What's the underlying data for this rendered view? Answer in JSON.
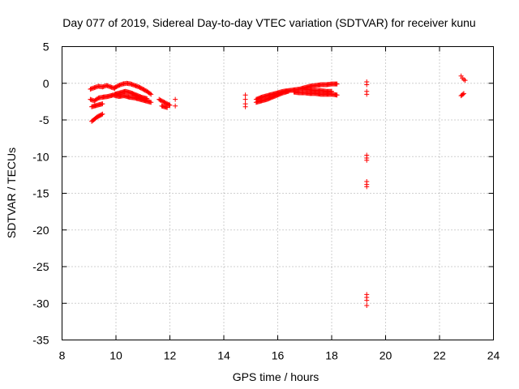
{
  "chart_data": {
    "type": "scatter",
    "title": "Day 077 of 2019, Sidereal Day-to-day VTEC variation (SDTVAR) for receiver kunu",
    "xlabel": "GPS time / hours",
    "ylabel": "SDTVAR / TECUs",
    "xlim": [
      8,
      24
    ],
    "ylim": [
      -35,
      5
    ],
    "xticks": [
      8,
      10,
      12,
      14,
      16,
      18,
      20,
      22,
      24
    ],
    "yticks": [
      5,
      0,
      -5,
      -10,
      -15,
      -20,
      -25,
      -30,
      -35
    ],
    "grid": true,
    "marker": "+",
    "marker_color": "#ff0000",
    "segments": [
      {
        "x": [
          9.05,
          9.2,
          9.35,
          9.5,
          9.65,
          9.8,
          9.95
        ],
        "y": [
          -0.8,
          -0.6,
          -0.4,
          -0.5,
          -0.3,
          -0.5,
          -0.7
        ]
      },
      {
        "x": [
          9.05,
          9.2,
          9.35,
          9.5,
          9.7,
          9.9,
          10.1,
          10.3,
          10.5,
          10.7,
          10.9,
          11.1,
          11.3
        ],
        "y": [
          -2.2,
          -2.4,
          -2.0,
          -1.9,
          -1.8,
          -1.6,
          -1.8,
          -1.7,
          -1.9,
          -2.0,
          -2.2,
          -2.4,
          -2.6
        ]
      },
      {
        "x": [
          9.1,
          9.3,
          9.5
        ],
        "y": [
          -3.2,
          -3.0,
          -2.8
        ]
      },
      {
        "x": [
          9.1,
          9.2,
          9.3,
          9.4,
          9.5
        ],
        "y": [
          -5.2,
          -4.9,
          -4.6,
          -4.4,
          -4.2
        ]
      },
      {
        "x": [
          9.95,
          10.1,
          10.25,
          10.4,
          10.55,
          10.7,
          10.85,
          11.0,
          11.15,
          11.3
        ],
        "y": [
          -0.6,
          -0.3,
          -0.1,
          0.0,
          -0.1,
          -0.3,
          -0.5,
          -0.8,
          -1.1,
          -1.5
        ]
      },
      {
        "x": [
          9.95,
          10.15,
          10.35,
          10.55,
          10.75,
          10.95,
          11.15
        ],
        "y": [
          -1.5,
          -1.3,
          -1.1,
          -1.3,
          -1.6,
          -1.9,
          -2.1
        ]
      },
      {
        "x": [
          11.6,
          11.75,
          11.9,
          12.0
        ],
        "y": [
          -2.2,
          -2.5,
          -2.8,
          -3.0
        ]
      },
      {
        "x": [
          11.7,
          11.9
        ],
        "y": [
          -3.1,
          -3.3
        ]
      },
      {
        "x": [
          12.2,
          12.2
        ],
        "y": [
          -2.2,
          -3.1
        ]
      },
      {
        "x": [
          14.8,
          14.8,
          14.8,
          14.8
        ],
        "y": [
          -1.6,
          -2.2,
          -2.8,
          -3.2
        ]
      },
      {
        "x": [
          15.2,
          15.4,
          15.6,
          15.8,
          16.0,
          16.2,
          16.4,
          16.6,
          16.8,
          17.0,
          17.2,
          17.4,
          17.6,
          17.8,
          18.0,
          18.2
        ],
        "y": [
          -2.2,
          -1.9,
          -1.7,
          -1.5,
          -1.3,
          -1.1,
          -1.0,
          -0.9,
          -0.8,
          -0.6,
          -0.4,
          -0.3,
          -0.2,
          -0.2,
          -0.1,
          -0.1
        ]
      },
      {
        "x": [
          15.2,
          15.4,
          15.6,
          15.8,
          16.0,
          16.2,
          16.4
        ],
        "y": [
          -2.6,
          -2.4,
          -2.2,
          -1.9,
          -1.6,
          -1.3,
          -1.1
        ]
      },
      {
        "x": [
          16.6,
          16.8,
          17.0,
          17.2,
          17.4,
          17.6,
          17.8,
          18.0,
          18.2
        ],
        "y": [
          -1.2,
          -1.3,
          -1.3,
          -1.4,
          -1.4,
          -1.5,
          -1.5,
          -1.5,
          -1.6
        ]
      },
      {
        "x": [
          17.0,
          17.2,
          17.4,
          17.6,
          17.8,
          18.0
        ],
        "y": [
          -0.8,
          -0.9,
          -1.0,
          -1.0,
          -1.1,
          -1.1
        ]
      },
      {
        "x": [
          19.3,
          19.3,
          19.3,
          19.3
        ],
        "y": [
          0.2,
          -0.2,
          -1.1,
          -1.5
        ]
      },
      {
        "x": [
          19.3,
          19.3,
          19.3
        ],
        "y": [
          -9.8,
          -10.2,
          -10.5
        ]
      },
      {
        "x": [
          19.3,
          19.3,
          19.3
        ],
        "y": [
          -13.4,
          -13.8,
          -14.1
        ]
      },
      {
        "x": [
          19.3,
          19.3,
          19.3,
          19.3
        ],
        "y": [
          -28.8,
          -29.2,
          -29.6,
          -30.3
        ]
      },
      {
        "x": [
          22.8,
          22.85,
          22.9,
          22.95
        ],
        "y": [
          1.0,
          0.7,
          0.5,
          0.4
        ]
      },
      {
        "x": [
          22.8,
          22.9
        ],
        "y": [
          -1.7,
          -1.4
        ]
      }
    ]
  }
}
